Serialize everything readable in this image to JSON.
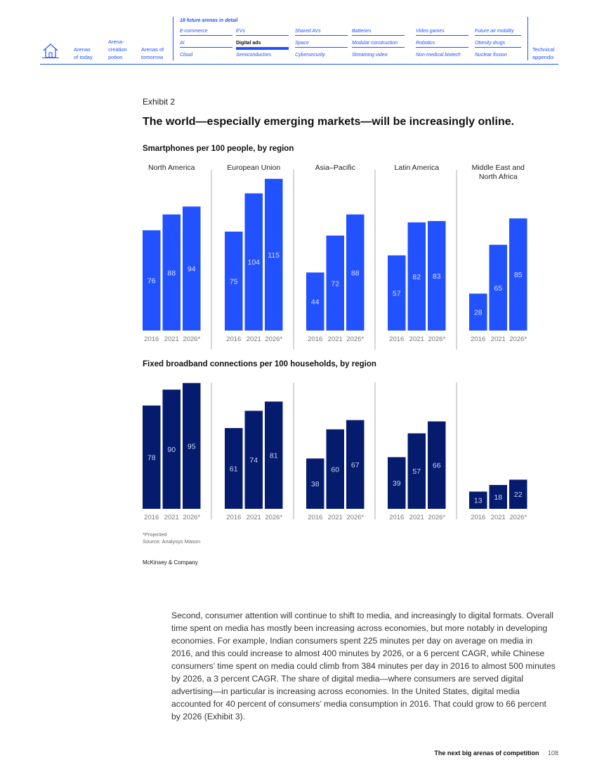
{
  "nav": {
    "links": [
      {
        "lines": [
          "Arenas",
          "of today"
        ]
      },
      {
        "lines": [
          "Arena-",
          "creation",
          "potion"
        ]
      },
      {
        "lines": [
          "Arenas of",
          "tomorrow"
        ]
      },
      {
        "lines": [
          "Technical",
          "appendix"
        ]
      }
    ],
    "arenas_title": "18 future arenas in detail",
    "arenas": [
      [
        "E-commerce",
        "AI",
        "Cloud"
      ],
      [
        "EVs",
        "Digital ads",
        "Semiconductors"
      ],
      [
        "Shared AVs",
        "Space",
        "Cybersecurity"
      ],
      [
        "Batteries",
        "Modular construction",
        "Streaming video"
      ],
      [
        "Video games",
        "Robotics",
        "Non-medical biotech"
      ],
      [
        "Future air mobility",
        "Obesity drugs",
        "Nuclear fission"
      ]
    ],
    "active_arena": "Digital ads"
  },
  "exhibit": {
    "label": "Exhibit 2",
    "title": "The world—especially emerging markets—will be increasingly online."
  },
  "chart_data": [
    {
      "type": "bar",
      "title": "Smartphones per 100 people, by region",
      "groups": [
        "North America",
        "European Union",
        "Asia–Pacific",
        "Latin America",
        "Middle East and North Africa"
      ],
      "categories": [
        "2016",
        "2021",
        "2026*"
      ],
      "values": [
        [
          76,
          88,
          94
        ],
        [
          75,
          104,
          115
        ],
        [
          44,
          72,
          88
        ],
        [
          57,
          82,
          83
        ],
        [
          28,
          65,
          85
        ]
      ],
      "color": "#2251ff",
      "grid": false
    },
    {
      "type": "bar",
      "title": "Fixed broadband connections per 100 households, by region",
      "groups": [
        "North America",
        "European Union",
        "Asia–Pacific",
        "Latin America",
        "Middle East and North Africa"
      ],
      "categories": [
        "2016",
        "2021",
        "2026*"
      ],
      "values": [
        [
          78,
          90,
          95
        ],
        [
          61,
          74,
          81
        ],
        [
          38,
          60,
          67
        ],
        [
          39,
          57,
          66
        ],
        [
          13,
          18,
          22
        ]
      ],
      "color": "#051c6e",
      "grid": false
    }
  ],
  "notes": {
    "projected": "*Projected",
    "source": "Source: Analysys Mason"
  },
  "credit": "McKinsey & Company",
  "body_text": "Second, consumer attention will continue to shift to media, and increasingly to digital formats. Overall time spent on media has mostly been increasing across economies, but more notably in developing economies. For example, Indian consumers spent 225 minutes per day on average on media in 2016, and this could increase to almost 400 minutes by 2026, or a 6 percent CAGR, while Chinese consumers’ time spent on media could climb from 384 minutes per day in 2016 to almost 500 minutes by 2026, a 3 percent CAGR. The share of digital media—where consumers are served digital advertising—in particular is increasing across economies. In the United States, digital media accounted for 40 percent of consumers’ media consumption in 2016. That could grow to 66 percent by 2026 (Exhibit 3).",
  "footer": {
    "title": "The next big arenas of competition",
    "page": "108"
  }
}
